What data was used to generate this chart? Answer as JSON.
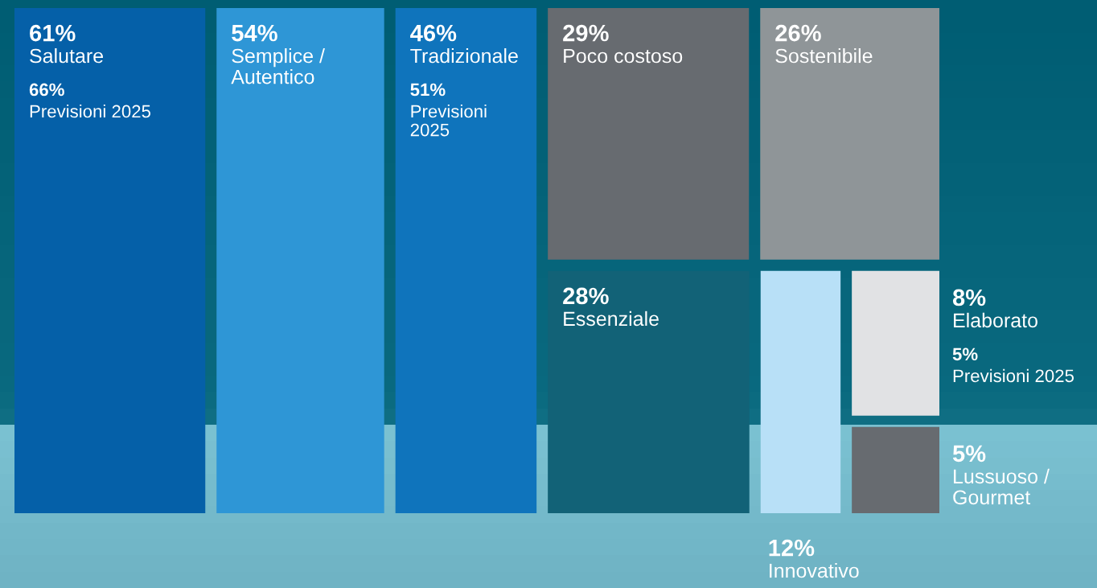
{
  "chart_data": {
    "type": "other",
    "categories": [
      "Salutare",
      "Semplice / Autentico",
      "Tradizionale",
      "Poco costoso",
      "Sostenibile",
      "Essenziale",
      "Innovativo",
      "Elaborato",
      "Lussuoso / Gourmet"
    ],
    "series": [
      {
        "values": [
          61,
          54,
          46,
          29,
          26,
          28,
          12,
          8,
          5
        ],
        "colors": [
          "#0560a8",
          "#2e96d6",
          "#0f74bc",
          "#676b70",
          "#8f9598",
          "#126277",
          "#b8e0f7",
          "#e1e2e4",
          "#676b70"
        ],
        "value_labels": [
          "61%",
          "54%",
          "46%",
          "29%",
          "26%",
          "28%",
          "12%",
          "8%",
          "5%"
        ]
      },
      {
        "name": "Previsioni 2025",
        "values": [
          66,
          null,
          51,
          null,
          null,
          null,
          null,
          5,
          null
        ],
        "value_labels": [
          "66%",
          null,
          "51%",
          null,
          null,
          null,
          null,
          "5%",
          null
        ]
      }
    ]
  }
}
